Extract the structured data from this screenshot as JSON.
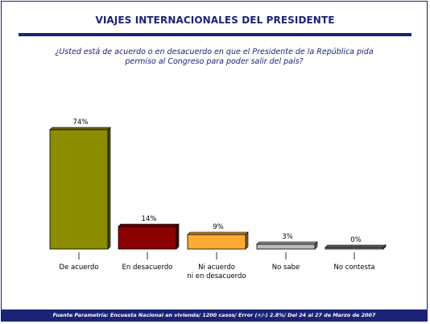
{
  "title": "VIAJES INTERNACIONALES DEL PRESIDENTE",
  "question": {
    "line1": "¿Usted está de acuerdo o en desacuerdo en que el Presidente de la República pida",
    "line2": "permiso al Congreso para poder salir del país?"
  },
  "footer": "Fuente Parametría: Encuesta Nacional en vivienda/ 1200 casos/ Error (+/-) 2.8%/ Del 24 al 27 de Marzo de 2007",
  "chart_data": {
    "type": "bar",
    "categories": [
      [
        "De acuerdo"
      ],
      [
        "En desacuerdo"
      ],
      [
        "Ni acuerdo",
        "ni en desacuerdo"
      ],
      [
        "No sabe"
      ],
      [
        "No contesta"
      ]
    ],
    "values": [
      74,
      14,
      9,
      3,
      0
    ],
    "value_labels": [
      "74%",
      "14%",
      "9%",
      "3%",
      "0%"
    ],
    "colors": [
      "#8c8c00",
      "#8b0000",
      "#ffab33",
      "#b9b9b9",
      "#808080"
    ],
    "ylim": [
      0,
      100
    ],
    "grid": false,
    "legend": "none"
  }
}
